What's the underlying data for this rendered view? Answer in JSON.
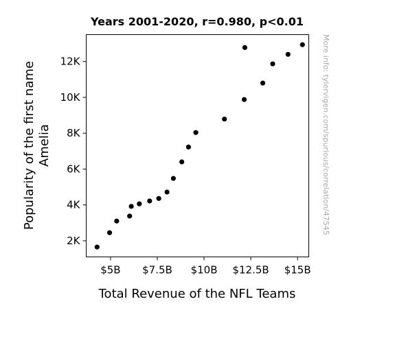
{
  "chart_data": {
    "type": "scatter",
    "title": "Years 2001-2020, r=0.980, p<0.01",
    "xlabel": "Total Revenue of the NFL Teams",
    "ylabel_lines": [
      "Popularity of the first name",
      "Amelia"
    ],
    "watermark": "More info: tylervigen.com/spurious/correlation/47545",
    "xlim": [
      3.7,
      15.6
    ],
    "ylim": [
      1100,
      13500
    ],
    "xticks": [
      {
        "value": 5,
        "label": "$5B"
      },
      {
        "value": 7.5,
        "label": "$7.5B"
      },
      {
        "value": 10,
        "label": "$10B"
      },
      {
        "value": 12.5,
        "label": "$12.5B"
      },
      {
        "value": 15,
        "label": "$15B"
      }
    ],
    "yticks": [
      {
        "value": 2000,
        "label": "2K"
      },
      {
        "value": 4000,
        "label": "4K"
      },
      {
        "value": 6000,
        "label": "6K"
      },
      {
        "value": 8000,
        "label": "8K"
      },
      {
        "value": 10000,
        "label": "10K"
      },
      {
        "value": 12000,
        "label": "12K"
      }
    ],
    "grid": false,
    "marker_color": "#000000",
    "points": [
      {
        "x": 4.28,
        "y": 1650
      },
      {
        "x": 4.95,
        "y": 2450
      },
      {
        "x": 5.33,
        "y": 3100
      },
      {
        "x": 6.02,
        "y": 3380
      },
      {
        "x": 6.11,
        "y": 3920
      },
      {
        "x": 6.54,
        "y": 4060
      },
      {
        "x": 7.09,
        "y": 4220
      },
      {
        "x": 7.58,
        "y": 4360
      },
      {
        "x": 8.02,
        "y": 4720
      },
      {
        "x": 8.36,
        "y": 5480
      },
      {
        "x": 8.81,
        "y": 6400
      },
      {
        "x": 9.17,
        "y": 7230
      },
      {
        "x": 9.56,
        "y": 8040
      },
      {
        "x": 11.09,
        "y": 8790
      },
      {
        "x": 12.15,
        "y": 9880
      },
      {
        "x": 12.18,
        "y": 12780
      },
      {
        "x": 13.14,
        "y": 10800
      },
      {
        "x": 13.67,
        "y": 11870
      },
      {
        "x": 14.49,
        "y": 12400
      },
      {
        "x": 15.26,
        "y": 12940
      }
    ]
  }
}
